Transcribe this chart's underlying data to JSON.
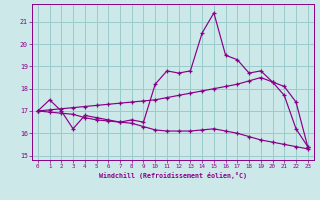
{
  "bg_color": "#cce8e8",
  "grid_color": "#99cccc",
  "line_color": "#880088",
  "xlabel": "Windchill (Refroidissement éolien,°C)",
  "xlim": [
    -0.5,
    23.5
  ],
  "ylim": [
    14.8,
    21.8
  ],
  "yticks": [
    15,
    16,
    17,
    18,
    19,
    20,
    21
  ],
  "xticks": [
    0,
    1,
    2,
    3,
    4,
    5,
    6,
    7,
    8,
    9,
    10,
    11,
    12,
    13,
    14,
    15,
    16,
    17,
    18,
    19,
    20,
    21,
    22,
    23
  ],
  "curve1_x": [
    0,
    1,
    2,
    3,
    4,
    5,
    6,
    7,
    8,
    9,
    10,
    11,
    12,
    13,
    14,
    15,
    16,
    17,
    18,
    19,
    20,
    21,
    22,
    23
  ],
  "curve1_y": [
    17.0,
    17.5,
    17.0,
    16.2,
    16.8,
    16.7,
    16.6,
    16.5,
    16.6,
    16.5,
    18.2,
    18.8,
    18.7,
    18.8,
    20.5,
    21.4,
    19.5,
    19.3,
    18.7,
    18.8,
    18.3,
    17.7,
    16.2,
    15.4
  ],
  "curve2_x": [
    0,
    1,
    2,
    3,
    4,
    5,
    6,
    7,
    8,
    9,
    10,
    11,
    12,
    13,
    14,
    15,
    16,
    17,
    18,
    19,
    20,
    21,
    22,
    23
  ],
  "curve2_y": [
    17.0,
    17.05,
    17.1,
    17.15,
    17.2,
    17.25,
    17.3,
    17.35,
    17.4,
    17.45,
    17.5,
    17.6,
    17.7,
    17.8,
    17.9,
    18.0,
    18.1,
    18.2,
    18.35,
    18.5,
    18.3,
    18.1,
    17.4,
    15.4
  ],
  "curve3_x": [
    0,
    1,
    2,
    3,
    4,
    5,
    6,
    7,
    8,
    9,
    10,
    11,
    12,
    13,
    14,
    15,
    16,
    17,
    18,
    19,
    20,
    21,
    22,
    23
  ],
  "curve3_y": [
    17.0,
    16.95,
    16.9,
    16.85,
    16.7,
    16.6,
    16.55,
    16.5,
    16.45,
    16.3,
    16.15,
    16.1,
    16.1,
    16.1,
    16.15,
    16.2,
    16.1,
    16.0,
    15.85,
    15.7,
    15.6,
    15.5,
    15.4,
    15.3
  ]
}
